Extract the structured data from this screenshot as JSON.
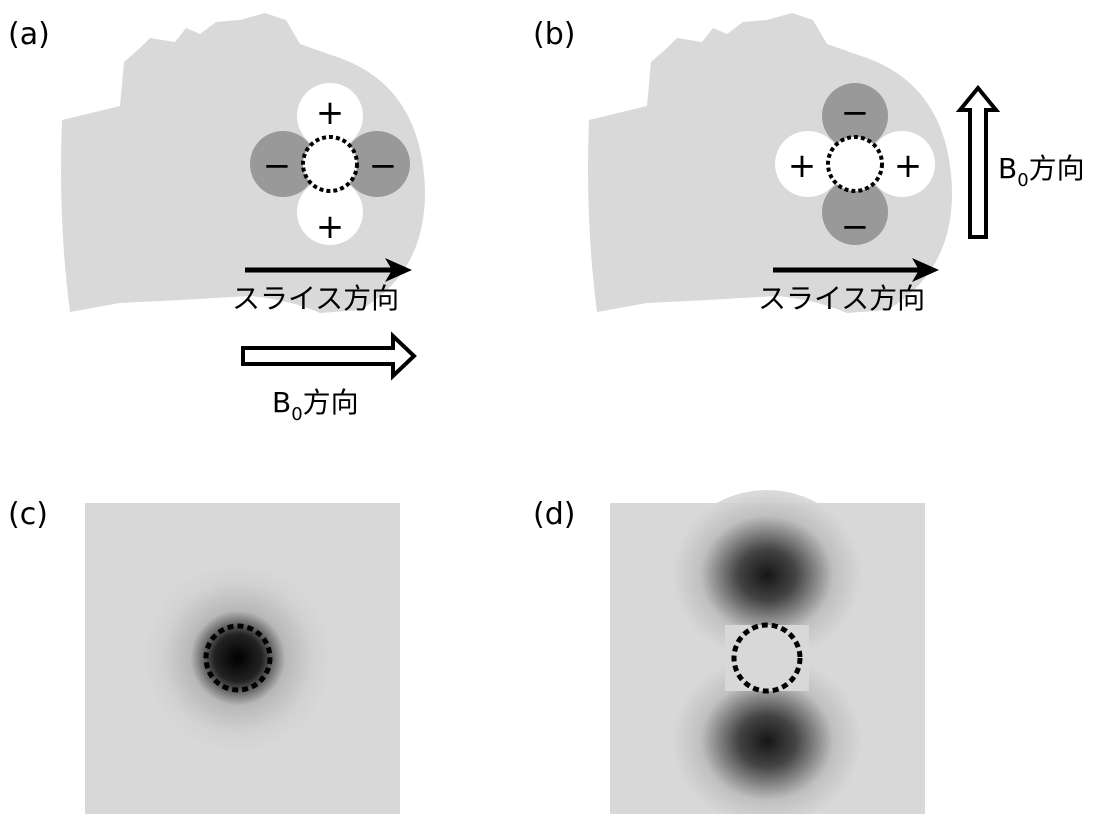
{
  "panels": [
    {
      "label": "(a)",
      "poles": {
        "top": "+",
        "left": "−",
        "right": "−",
        "bottom": "+"
      },
      "slice_label": "スライス方向",
      "b0": {
        "base": "B",
        "sub": "0",
        "suffix": "方向"
      }
    },
    {
      "label": "(b)",
      "poles": {
        "top": "−",
        "left": "+",
        "right": "+",
        "bottom": "−"
      },
      "slice_label": "スライス方向",
      "b0": {
        "base": "B",
        "sub": "0",
        "suffix": "方向"
      }
    },
    {
      "label": "(c)"
    },
    {
      "label": "(d)"
    }
  ]
}
